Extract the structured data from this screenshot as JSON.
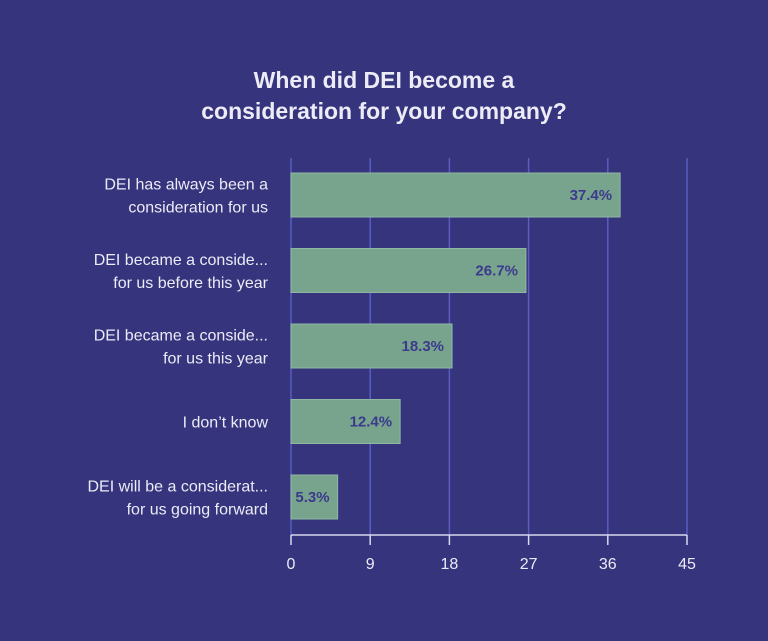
{
  "chart_data": {
    "type": "bar",
    "orientation": "horizontal",
    "title": "When did DEI become a consideration for your company?",
    "title_lines": [
      "When did DEI become a",
      "consideration for your company?"
    ],
    "categories": [
      [
        "DEI has always been a",
        "consideration for us"
      ],
      [
        "DEI became a conside...",
        "for us before this year"
      ],
      [
        "DEI became a conside...",
        "for us this year"
      ],
      [
        "I don’t know"
      ],
      [
        "DEI will be a considerat...",
        "for us going forward"
      ]
    ],
    "values": [
      37.4,
      26.7,
      18.3,
      12.4,
      5.3
    ],
    "data_labels": [
      "37.4%",
      "26.7%",
      "18.3%",
      "12.4%",
      "5.3%"
    ],
    "xlim": [
      0,
      45
    ],
    "xticks": [
      "0",
      "9",
      "18",
      "27",
      "36",
      "45"
    ],
    "xlabel": "",
    "ylabel": "",
    "grid": "vertical",
    "colors": {
      "background": "#35347d",
      "bar": "#78a48e",
      "grid": "#5a5cc0",
      "label": "#3b3a8c",
      "text": "#ecebf6"
    }
  }
}
